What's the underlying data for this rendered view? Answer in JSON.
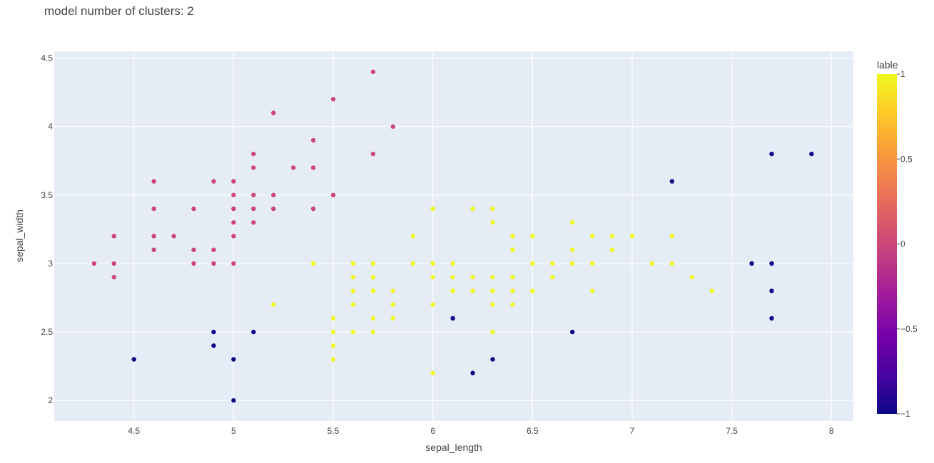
{
  "chart_data": {
    "type": "scatter",
    "title": "model number of clusters: 2",
    "xlabel": "sepal_length",
    "ylabel": "sepal_width",
    "xlim": [
      4.1,
      8.11
    ],
    "ylim": [
      1.85,
      4.55
    ],
    "x_ticks": [
      4.5,
      5,
      5.5,
      6,
      6.5,
      7,
      7.5,
      8
    ],
    "x_tick_labels": [
      "4.5",
      "5",
      "5.5",
      "6",
      "6.5",
      "7",
      "7.5",
      "8"
    ],
    "y_ticks": [
      2,
      2.5,
      3,
      3.5,
      4,
      4.5
    ],
    "y_tick_labels": [
      "2",
      "2.5",
      "3",
      "3.5",
      "4",
      "4.5"
    ],
    "grid": true,
    "colorbar": {
      "title": "lable",
      "range": [
        -1,
        1
      ],
      "ticks": [
        1,
        0.5,
        0,
        -0.5,
        -1
      ],
      "tick_labels": [
        "1",
        "0.5",
        "0",
        "−0.5",
        "−1"
      ],
      "colorscale": [
        "#0d0887",
        "#46039f",
        "#7201a8",
        "#9c179e",
        "#bd3786",
        "#d8576b",
        "#ed7953",
        "#fb9f3a",
        "#fdca26",
        "#f0f921"
      ]
    },
    "series": [
      {
        "label_value": 0,
        "color": "#cc4778",
        "points": [
          [
            5.7,
            4.4
          ],
          [
            5.5,
            4.2
          ],
          [
            5.2,
            4.1
          ],
          [
            5.8,
            4.0
          ],
          [
            5.4,
            3.9
          ],
          [
            5.1,
            3.8
          ],
          [
            5.7,
            3.8
          ],
          [
            5.1,
            3.7
          ],
          [
            5.3,
            3.7
          ],
          [
            5.4,
            3.7
          ],
          [
            4.6,
            3.6
          ],
          [
            4.9,
            3.6
          ],
          [
            5.0,
            3.6
          ],
          [
            5.0,
            3.5
          ],
          [
            5.1,
            3.5
          ],
          [
            5.2,
            3.5
          ],
          [
            5.5,
            3.5
          ],
          [
            4.6,
            3.4
          ],
          [
            4.8,
            3.4
          ],
          [
            5.0,
            3.4
          ],
          [
            5.1,
            3.4
          ],
          [
            5.2,
            3.4
          ],
          [
            5.4,
            3.4
          ],
          [
            5.0,
            3.3
          ],
          [
            5.1,
            3.3
          ],
          [
            4.4,
            3.2
          ],
          [
            4.6,
            3.2
          ],
          [
            4.7,
            3.2
          ],
          [
            5.0,
            3.2
          ],
          [
            4.6,
            3.1
          ],
          [
            4.8,
            3.1
          ],
          [
            4.9,
            3.1
          ],
          [
            4.3,
            3.0
          ],
          [
            4.4,
            3.0
          ],
          [
            4.8,
            3.0
          ],
          [
            4.9,
            3.0
          ],
          [
            5.0,
            3.0
          ],
          [
            4.4,
            2.9
          ]
        ]
      },
      {
        "label_value": 1,
        "color": "#f0f921",
        "points": [
          [
            6.0,
            3.4
          ],
          [
            6.2,
            3.4
          ],
          [
            6.3,
            3.4
          ],
          [
            6.3,
            3.3
          ],
          [
            6.7,
            3.3
          ],
          [
            5.9,
            3.2
          ],
          [
            6.4,
            3.2
          ],
          [
            6.5,
            3.2
          ],
          [
            6.8,
            3.2
          ],
          [
            6.9,
            3.2
          ],
          [
            7.0,
            3.2
          ],
          [
            7.2,
            3.2
          ],
          [
            6.4,
            3.1
          ],
          [
            6.7,
            3.1
          ],
          [
            6.9,
            3.1
          ],
          [
            5.4,
            3.0
          ],
          [
            5.6,
            3.0
          ],
          [
            5.7,
            3.0
          ],
          [
            5.9,
            3.0
          ],
          [
            6.0,
            3.0
          ],
          [
            6.1,
            3.0
          ],
          [
            6.5,
            3.0
          ],
          [
            6.6,
            3.0
          ],
          [
            6.7,
            3.0
          ],
          [
            6.8,
            3.0
          ],
          [
            7.1,
            3.0
          ],
          [
            7.2,
            3.0
          ],
          [
            5.6,
            2.9
          ],
          [
            5.7,
            2.9
          ],
          [
            6.0,
            2.9
          ],
          [
            6.1,
            2.9
          ],
          [
            6.2,
            2.9
          ],
          [
            6.3,
            2.9
          ],
          [
            6.4,
            2.9
          ],
          [
            6.6,
            2.9
          ],
          [
            7.3,
            2.9
          ],
          [
            5.6,
            2.8
          ],
          [
            5.7,
            2.8
          ],
          [
            5.8,
            2.8
          ],
          [
            6.1,
            2.8
          ],
          [
            6.2,
            2.8
          ],
          [
            6.3,
            2.8
          ],
          [
            6.4,
            2.8
          ],
          [
            6.5,
            2.8
          ],
          [
            6.8,
            2.8
          ],
          [
            7.4,
            2.8
          ],
          [
            5.2,
            2.7
          ],
          [
            5.6,
            2.7
          ],
          [
            5.8,
            2.7
          ],
          [
            6.0,
            2.7
          ],
          [
            6.3,
            2.7
          ],
          [
            6.4,
            2.7
          ],
          [
            5.5,
            2.6
          ],
          [
            5.7,
            2.6
          ],
          [
            5.8,
            2.6
          ],
          [
            5.5,
            2.5
          ],
          [
            5.6,
            2.5
          ],
          [
            5.7,
            2.5
          ],
          [
            6.3,
            2.5
          ],
          [
            5.5,
            2.4
          ],
          [
            5.5,
            2.3
          ],
          [
            6.0,
            2.2
          ]
        ]
      },
      {
        "label_value": -1,
        "color": "#0d0887",
        "points": [
          [
            7.7,
            3.8
          ],
          [
            7.9,
            3.8
          ],
          [
            7.2,
            3.6
          ],
          [
            7.6,
            3.0
          ],
          [
            7.7,
            3.0
          ],
          [
            7.7,
            2.8
          ],
          [
            6.1,
            2.6
          ],
          [
            7.7,
            2.6
          ],
          [
            4.9,
            2.5
          ],
          [
            5.1,
            2.5
          ],
          [
            6.7,
            2.5
          ],
          [
            4.9,
            2.4
          ],
          [
            4.5,
            2.3
          ],
          [
            5.0,
            2.3
          ],
          [
            6.3,
            2.3
          ],
          [
            6.2,
            2.2
          ],
          [
            5.0,
            2.0
          ]
        ]
      }
    ]
  }
}
